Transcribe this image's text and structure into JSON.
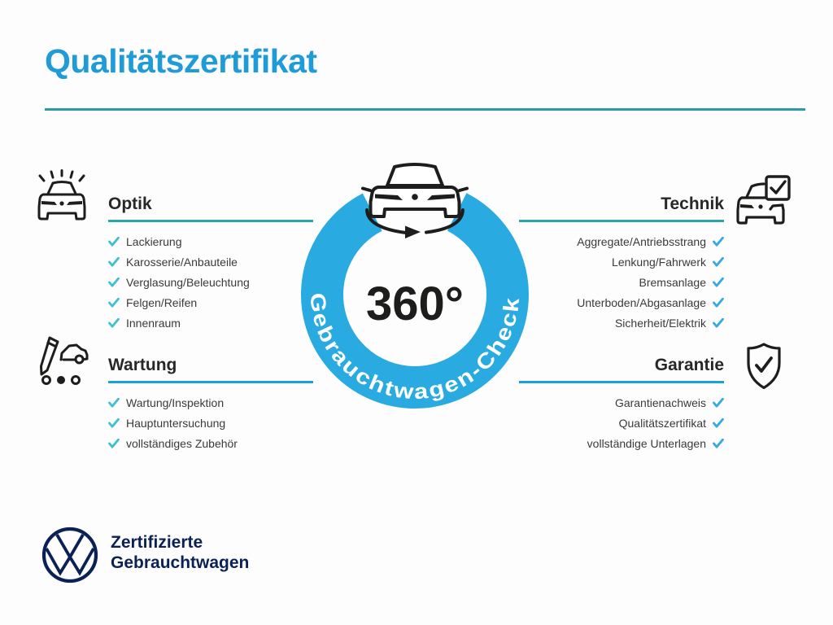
{
  "header": {
    "title": "Qualitätszertifikat"
  },
  "badge": {
    "center_text": "360°",
    "ring_text": "Gebrauchtwagen-Check",
    "icon": "car-rotation-icon",
    "ring_color": "#29abe2"
  },
  "sections": [
    {
      "id": "optik",
      "title": "Optik",
      "icon": "car-shine-icon",
      "items": [
        "Lackierung",
        "Karosserie/Anbauteile",
        "Verglasung/Beleuchtung",
        "Felgen/Reifen",
        "Innenraum"
      ]
    },
    {
      "id": "technik",
      "title": "Technik",
      "icon": "car-checkbox-icon",
      "items": [
        "Aggregate/Antriebsstrang",
        "Lenkung/Fahrwerk",
        "Bremsanlage",
        "Unterboden/Abgasanlage",
        "Sicherheit/Elektrik"
      ]
    },
    {
      "id": "wartung",
      "title": "Wartung",
      "icon": "pencil-car-icon",
      "items": [
        "Wartung/Inspektion",
        "Hauptuntersuchung",
        "vollständiges Zubehör"
      ]
    },
    {
      "id": "garantie",
      "title": "Garantie",
      "icon": "shield-check-icon",
      "items": [
        "Garantienachweis",
        "Qualitätszertifikat",
        "vollständige Unterlagen"
      ]
    }
  ],
  "footer": {
    "brand_line1": "Zertifizierte",
    "brand_line2": "Gebrauchtwagen",
    "logo": "vw-logo"
  },
  "colors": {
    "title_blue": "#1f9bd7",
    "ring_blue": "#29abe2",
    "teal_rule": "#28a5ad",
    "blue_rule": "#1d9fdc",
    "check_teal": "#3fc1d1",
    "check_blue": "#35a9e0",
    "navy": "#0a2156",
    "ink": "#1d1d1b"
  }
}
